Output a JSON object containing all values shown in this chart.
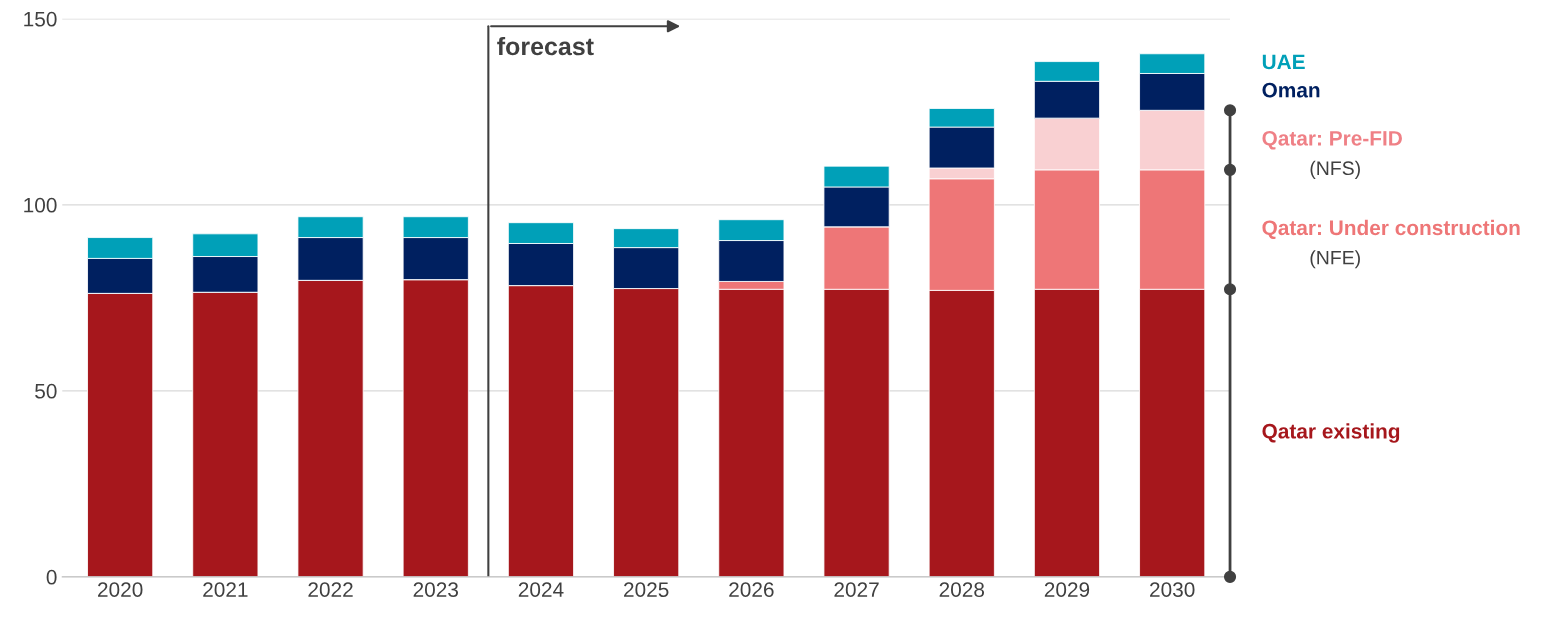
{
  "chart_data": {
    "type": "bar",
    "stacked": true,
    "categories": [
      "2020",
      "2021",
      "2022",
      "2023",
      "2024",
      "2025",
      "2026",
      "2027",
      "2028",
      "2029",
      "2030"
    ],
    "series": [
      {
        "name": "Qatar existing",
        "color": "#a6171c",
        "values": [
          76.2,
          76.5,
          79.7,
          79.9,
          78.3,
          77.5,
          77.3,
          77.3,
          77.0,
          77.3,
          77.3
        ]
      },
      {
        "name": "Qatar: Under construction",
        "color": "#ee7677",
        "values": [
          null,
          null,
          null,
          null,
          null,
          null,
          2.1,
          16.8,
          30.0,
          32.1,
          32.1
        ]
      },
      {
        "name": "Qatar: Pre-FID",
        "color": "#f9d0d2",
        "values": [
          null,
          null,
          null,
          null,
          null,
          null,
          null,
          null,
          2.9,
          13.9,
          16.0
        ]
      },
      {
        "name": "Oman",
        "color": "#002060",
        "values": [
          9.4,
          9.6,
          11.5,
          11.3,
          11.3,
          11.0,
          11.0,
          10.7,
          11.0,
          9.9,
          9.9
        ]
      },
      {
        "name": "UAE",
        "color": "#00a0b8",
        "values": [
          5.6,
          6.1,
          5.6,
          5.6,
          5.6,
          5.1,
          5.6,
          5.6,
          5.0,
          5.3,
          5.3
        ]
      }
    ],
    "ylim": [
      0,
      150
    ],
    "yticks": [
      0,
      50,
      100,
      150
    ],
    "grid": "y",
    "legend": false,
    "ref_lines": [
      {
        "axis": "x",
        "value": "2024",
        "label": "forecast",
        "color": "#404040"
      }
    ],
    "annotations": [
      "(NFS)",
      "(NFE)"
    ]
  }
}
